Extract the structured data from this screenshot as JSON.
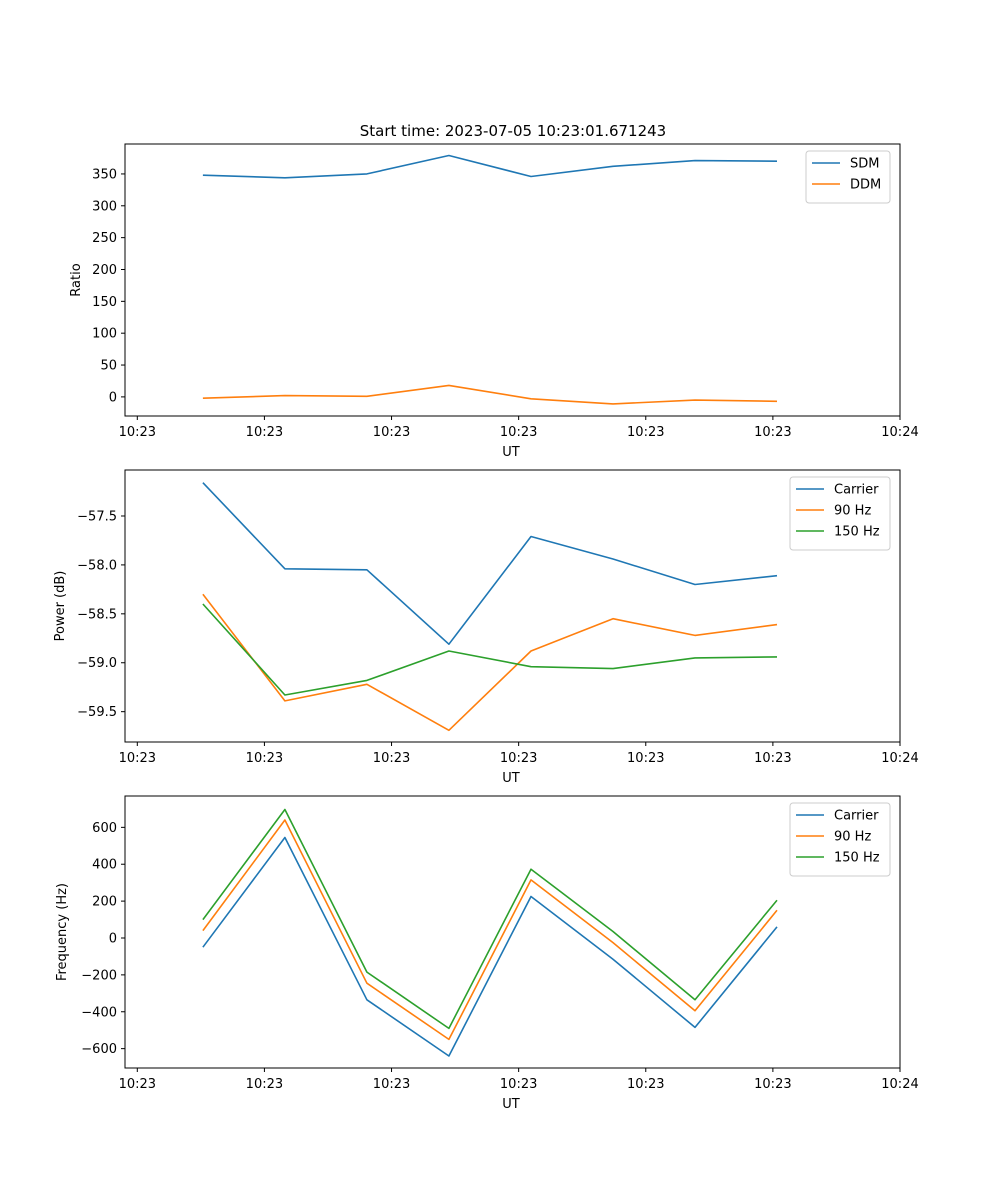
{
  "colors": {
    "blue": "#1f77b4",
    "orange": "#ff7f0e",
    "green": "#2ca02c"
  },
  "chart_data": [
    {
      "type": "line",
      "title": "Start time: 2023-07-05 10:23:01.671243",
      "xlabel": "UT",
      "ylabel": "Ratio",
      "x": [
        1,
        2,
        3,
        4,
        5,
        6,
        7,
        8
      ],
      "xlim": [
        0.05,
        9.5
      ],
      "x_ticks": [
        0.2,
        1.75,
        3.3,
        4.85,
        6.4,
        7.95,
        9.5
      ],
      "x_tick_labels": [
        "10:23",
        "10:23",
        "10:23",
        "10:23",
        "10:23",
        "10:23",
        "10:24"
      ],
      "ylim": [
        -30,
        397
      ],
      "y_ticks": [
        0,
        50,
        100,
        150,
        200,
        250,
        300,
        350
      ],
      "y_tick_labels": [
        "0",
        "50",
        "100",
        "150",
        "200",
        "250",
        "300",
        "350"
      ],
      "legend_position": "top-right",
      "series": [
        {
          "name": "SDM",
          "color_key": "blue",
          "values": [
            348,
            344,
            350,
            379,
            346,
            362,
            371,
            370
          ]
        },
        {
          "name": "DDM",
          "color_key": "orange",
          "values": [
            -2,
            2,
            1,
            18,
            -3,
            -11,
            -5,
            -7
          ]
        }
      ]
    },
    {
      "type": "line",
      "xlabel": "UT",
      "ylabel": "Power (dB)",
      "x": [
        1,
        2,
        3,
        4,
        5,
        6,
        7,
        8
      ],
      "xlim": [
        0.05,
        9.5
      ],
      "x_ticks": [
        0.2,
        1.75,
        3.3,
        4.85,
        6.4,
        7.95,
        9.5
      ],
      "x_tick_labels": [
        "10:23",
        "10:23",
        "10:23",
        "10:23",
        "10:23",
        "10:23",
        "10:24"
      ],
      "ylim": [
        -59.81,
        -57.03
      ],
      "y_ticks": [
        -59.5,
        -59.0,
        -58.5,
        -58.0,
        -57.5
      ],
      "y_tick_labels": [
        "−59.5",
        "−59.0",
        "−58.5",
        "−58.0",
        "−57.5"
      ],
      "legend_position": "top-right",
      "series": [
        {
          "name": "Carrier",
          "color_key": "blue",
          "values": [
            -57.16,
            -58.04,
            -58.05,
            -58.81,
            -57.71,
            -57.94,
            -58.2,
            -58.11
          ]
        },
        {
          "name": "90 Hz",
          "color_key": "orange",
          "values": [
            -58.3,
            -59.39,
            -59.22,
            -59.69,
            -58.88,
            -58.55,
            -58.72,
            -58.61
          ]
        },
        {
          "name": "150 Hz",
          "color_key": "green",
          "values": [
            -58.4,
            -59.33,
            -59.18,
            -58.88,
            -59.04,
            -59.06,
            -58.95,
            -58.94
          ]
        }
      ]
    },
    {
      "type": "line",
      "xlabel": "UT",
      "ylabel": "Frequency (Hz)",
      "x": [
        1,
        2,
        3,
        4,
        5,
        6,
        7,
        8
      ],
      "xlim": [
        0.05,
        9.5
      ],
      "x_ticks": [
        0.2,
        1.75,
        3.3,
        4.85,
        6.4,
        7.95,
        9.5
      ],
      "x_tick_labels": [
        "10:23",
        "10:23",
        "10:23",
        "10:23",
        "10:23",
        "10:23",
        "10:24"
      ],
      "ylim": [
        -705,
        770
      ],
      "y_ticks": [
        -600,
        -400,
        -200,
        0,
        200,
        400,
        600
      ],
      "y_tick_labels": [
        "−600",
        "−400",
        "−200",
        "0",
        "200",
        "400",
        "600"
      ],
      "legend_position": "top-right",
      "series": [
        {
          "name": "Carrier",
          "color_key": "blue",
          "values": [
            -50,
            545,
            -335,
            -640,
            225,
            -115,
            -485,
            60
          ]
        },
        {
          "name": "90 Hz",
          "color_key": "orange",
          "values": [
            40,
            640,
            -245,
            -550,
            315,
            -25,
            -395,
            150
          ]
        },
        {
          "name": "150 Hz",
          "color_key": "green",
          "values": [
            100,
            697,
            -185,
            -490,
            373,
            35,
            -335,
            205
          ]
        }
      ]
    }
  ]
}
